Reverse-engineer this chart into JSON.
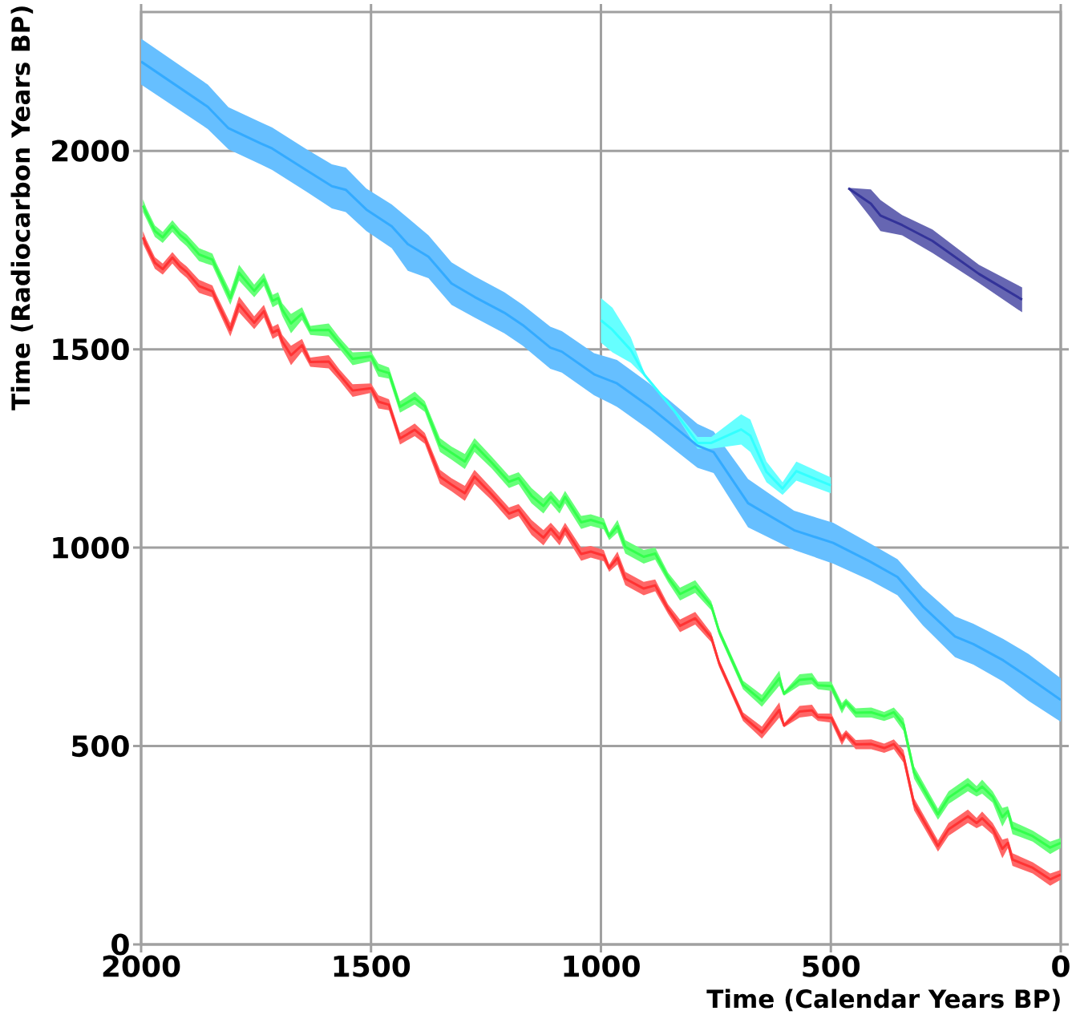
{
  "chart_data": {
    "type": "line",
    "xlabel": "Time (Calendar Years BP)",
    "ylabel": "Time (Radiocarbon Years BP)",
    "xlim": [
      2000,
      0
    ],
    "xticks": [
      2000,
      1500,
      1000,
      500,
      0
    ],
    "ylim": [
      0,
      2350
    ],
    "yticks": [
      0,
      500,
      1000,
      1500,
      2000
    ],
    "grid": true,
    "series": [
      {
        "color": "#33aaff",
        "x": [
          2000,
          1855,
          1810,
          1740,
          1715,
          1640,
          1585,
          1555,
          1510,
          1455,
          1420,
          1375,
          1325,
          1275,
          1210,
          1170,
          1110,
          1085,
          1015,
          965,
          895,
          790,
          755,
          680,
          580,
          495,
          415,
          355,
          300,
          230,
          190,
          125,
          70,
          0
        ],
        "values": [
          2225,
          2111,
          2057,
          2019,
          2006,
          1951,
          1911,
          1902,
          1852,
          1810,
          1765,
          1733,
          1666,
          1632,
          1592,
          1561,
          1504,
          1494,
          1437,
          1414,
          1356,
          1257,
          1241,
          1112,
          1044,
          1012,
          965,
          926,
          852,
          776,
          757,
          716,
          673,
          616
        ],
        "lower": [
          2167,
          2055,
          2004,
          1966,
          1952,
          1897,
          1855,
          1846,
          1798,
          1755,
          1698,
          1679,
          1612,
          1580,
          1540,
          1509,
          1451,
          1441,
          1384,
          1355,
          1297,
          1201,
          1188,
          1051,
          994,
          960,
          918,
          880,
          804,
          724,
          705,
          662,
          614,
          561
        ],
        "upper": [
          2283,
          2167,
          2110,
          2072,
          2059,
          2004,
          1966,
          1958,
          1905,
          1865,
          1831,
          1787,
          1719,
          1684,
          1644,
          1612,
          1557,
          1546,
          1490,
          1473,
          1414,
          1312,
          1293,
          1173,
          1093,
          1063,
          1011,
          971,
          899,
          827,
          808,
          770,
          732,
          671
        ]
      },
      {
        "color": "#33ffff",
        "x": [
          1000,
          975,
          935,
          905,
          840,
          790,
          760,
          695,
          675,
          640,
          605,
          575,
          500
        ],
        "values": [
          1573,
          1549,
          1498,
          1435,
          1344,
          1264,
          1264,
          1298,
          1282,
          1191,
          1149,
          1193,
          1157
        ],
        "lower": [
          1517,
          1492,
          1466,
          1431,
          1340,
          1249,
          1249,
          1260,
          1241,
          1165,
          1133,
          1169,
          1137
        ],
        "upper": [
          1629,
          1605,
          1530,
          1439,
          1348,
          1279,
          1279,
          1336,
          1323,
          1217,
          1165,
          1217,
          1177
        ]
      },
      {
        "color": "#333399",
        "x": [
          462,
          413,
          392,
          345,
          279,
          178,
          84
        ],
        "values": [
          1906,
          1867,
          1837,
          1813,
          1773,
          1690,
          1625
        ],
        "lower": [
          1904,
          1831,
          1798,
          1787,
          1743,
          1667,
          1593
        ],
        "upper": [
          1907,
          1903,
          1876,
          1838,
          1802,
          1713,
          1656
        ]
      },
      {
        "color": "#33ff4c",
        "x": [
          1996,
          1988,
          1970,
          1953,
          1932,
          1915,
          1901,
          1874,
          1845,
          1836,
          1806,
          1787,
          1754,
          1733,
          1714,
          1702,
          1693,
          1674,
          1650,
          1632,
          1592,
          1569,
          1540,
          1500,
          1484,
          1461,
          1437,
          1405,
          1383,
          1350,
          1325,
          1296,
          1275,
          1238,
          1200,
          1179,
          1151,
          1125,
          1109,
          1090,
          1078,
          1043,
          1022,
          994,
          982,
          964,
          947,
          907,
          882,
          854,
          828,
          795,
          760,
          743,
          691,
          650,
          612,
          602,
          568,
          541,
          528,
          499,
          476,
          467,
          446,
          412,
          384,
          363,
          342,
          319,
          267,
          244,
          202,
          183,
          171,
          148,
          127,
          115,
          105,
          61,
          23,
          0
        ],
        "values": [
          1862,
          1841,
          1798,
          1782,
          1811,
          1788,
          1775,
          1739,
          1726,
          1703,
          1629,
          1693,
          1647,
          1676,
          1622,
          1629,
          1600,
          1565,
          1590,
          1548,
          1549,
          1516,
          1476,
          1482,
          1448,
          1440,
          1355,
          1377,
          1356,
          1259,
          1239,
          1217,
          1259,
          1215,
          1166,
          1175,
          1131,
          1105,
          1128,
          1102,
          1128,
          1064,
          1070,
          1060,
          1029,
          1054,
          1002,
          977,
          985,
          925,
          883,
          902,
          854,
          789,
          654,
          614,
          671,
          632,
          667,
          670,
          653,
          651,
          595,
          611,
          584,
          585,
          575,
          585,
          554,
          434,
          328,
          370,
          403,
          386,
          398,
          372,
          321,
          336,
          294,
          273,
          244,
          256
        ],
        "lower": [
          1846,
          1827,
          1783,
          1768,
          1796,
          1774,
          1760,
          1722,
          1711,
          1688,
          1612,
          1673,
          1631,
          1660,
          1606,
          1614,
          1584,
          1540,
          1574,
          1536,
          1532,
          1502,
          1460,
          1470,
          1431,
          1426,
          1340,
          1361,
          1342,
          1241,
          1222,
          1198,
          1241,
          1200,
          1150,
          1160,
          1112,
          1086,
          1112,
          1086,
          1112,
          1047,
          1055,
          1046,
          1019,
          1038,
          985,
          960,
          970,
          913,
          867,
          886,
          842,
          779,
          643,
          599,
          652,
          627,
          652,
          656,
          643,
          639,
          582,
          601,
          572,
          572,
          563,
          572,
          538,
          418,
          314,
          354,
          386,
          373,
          380,
          357,
          297,
          323,
          278,
          259,
          228,
          243
        ],
        "upper": [
          1878,
          1855,
          1812,
          1796,
          1825,
          1802,
          1789,
          1755,
          1741,
          1717,
          1646,
          1713,
          1663,
          1692,
          1637,
          1644,
          1616,
          1589,
          1606,
          1559,
          1565,
          1530,
          1492,
          1494,
          1464,
          1454,
          1369,
          1393,
          1369,
          1276,
          1255,
          1236,
          1276,
          1230,
          1181,
          1190,
          1150,
          1124,
          1143,
          1118,
          1143,
          1080,
          1084,
          1074,
          1038,
          1070,
          1019,
          994,
          1000,
          937,
          899,
          918,
          865,
          798,
          665,
          629,
          690,
          637,
          681,
          684,
          662,
          662,
          608,
          620,
          595,
          597,
          586,
          597,
          570,
          449,
          342,
          386,
          420,
          399,
          415,
          386,
          344,
          348,
          310,
          287,
          259,
          268
        ]
      },
      {
        "color": "#ff3333",
        "x": [
          1996,
          1988,
          1970,
          1953,
          1932,
          1915,
          1901,
          1874,
          1845,
          1836,
          1806,
          1787,
          1754,
          1733,
          1714,
          1702,
          1693,
          1674,
          1650,
          1632,
          1592,
          1569,
          1540,
          1500,
          1484,
          1461,
          1437,
          1405,
          1383,
          1350,
          1325,
          1296,
          1275,
          1238,
          1200,
          1179,
          1151,
          1125,
          1109,
          1090,
          1078,
          1043,
          1022,
          994,
          982,
          964,
          947,
          907,
          882,
          854,
          828,
          795,
          760,
          743,
          691,
          650,
          612,
          602,
          568,
          541,
          528,
          499,
          476,
          467,
          446,
          412,
          384,
          363,
          342,
          319,
          267,
          244,
          202,
          183,
          171,
          148,
          127,
          115,
          105,
          61,
          23,
          0
        ],
        "values": [
          1782,
          1761,
          1718,
          1702,
          1731,
          1708,
          1695,
          1659,
          1646,
          1623,
          1549,
          1613,
          1567,
          1596,
          1542,
          1549,
          1520,
          1485,
          1510,
          1468,
          1469,
          1436,
          1396,
          1402,
          1368,
          1360,
          1275,
          1297,
          1276,
          1179,
          1159,
          1137,
          1179,
          1135,
          1086,
          1095,
          1051,
          1025,
          1048,
          1022,
          1048,
          984,
          990,
          980,
          949,
          974,
          922,
          897,
          905,
          845,
          803,
          822,
          774,
          709,
          574,
          534,
          591,
          552,
          587,
          590,
          573,
          571,
          515,
          531,
          504,
          505,
          495,
          505,
          474,
          354,
          248,
          290,
          323,
          306,
          318,
          292,
          241,
          256,
          214,
          193,
          164,
          176
        ],
        "lower": [
          1766,
          1747,
          1703,
          1688,
          1716,
          1694,
          1680,
          1642,
          1631,
          1608,
          1532,
          1593,
          1551,
          1580,
          1526,
          1534,
          1504,
          1460,
          1494,
          1456,
          1452,
          1422,
          1380,
          1390,
          1351,
          1346,
          1260,
          1281,
          1262,
          1161,
          1142,
          1118,
          1161,
          1120,
          1070,
          1080,
          1032,
          1006,
          1032,
          1006,
          1032,
          967,
          975,
          966,
          939,
          958,
          905,
          880,
          890,
          833,
          787,
          806,
          762,
          699,
          563,
          519,
          572,
          547,
          572,
          576,
          563,
          559,
          502,
          521,
          492,
          492,
          483,
          492,
          458,
          338,
          234,
          274,
          306,
          293,
          300,
          277,
          217,
          243,
          198,
          179,
          148,
          163
        ],
        "upper": [
          1798,
          1775,
          1732,
          1716,
          1745,
          1722,
          1709,
          1675,
          1661,
          1637,
          1566,
          1633,
          1583,
          1612,
          1557,
          1564,
          1536,
          1509,
          1526,
          1479,
          1485,
          1450,
          1412,
          1414,
          1384,
          1374,
          1289,
          1313,
          1289,
          1196,
          1175,
          1156,
          1196,
          1150,
          1101,
          1110,
          1070,
          1044,
          1063,
          1038,
          1063,
          1000,
          1004,
          994,
          958,
          990,
          939,
          914,
          920,
          857,
          819,
          838,
          785,
          718,
          585,
          549,
          610,
          557,
          601,
          604,
          582,
          582,
          528,
          540,
          515,
          517,
          506,
          517,
          490,
          369,
          262,
          306,
          340,
          319,
          335,
          306,
          264,
          268,
          230,
          207,
          179,
          188
        ]
      }
    ]
  }
}
